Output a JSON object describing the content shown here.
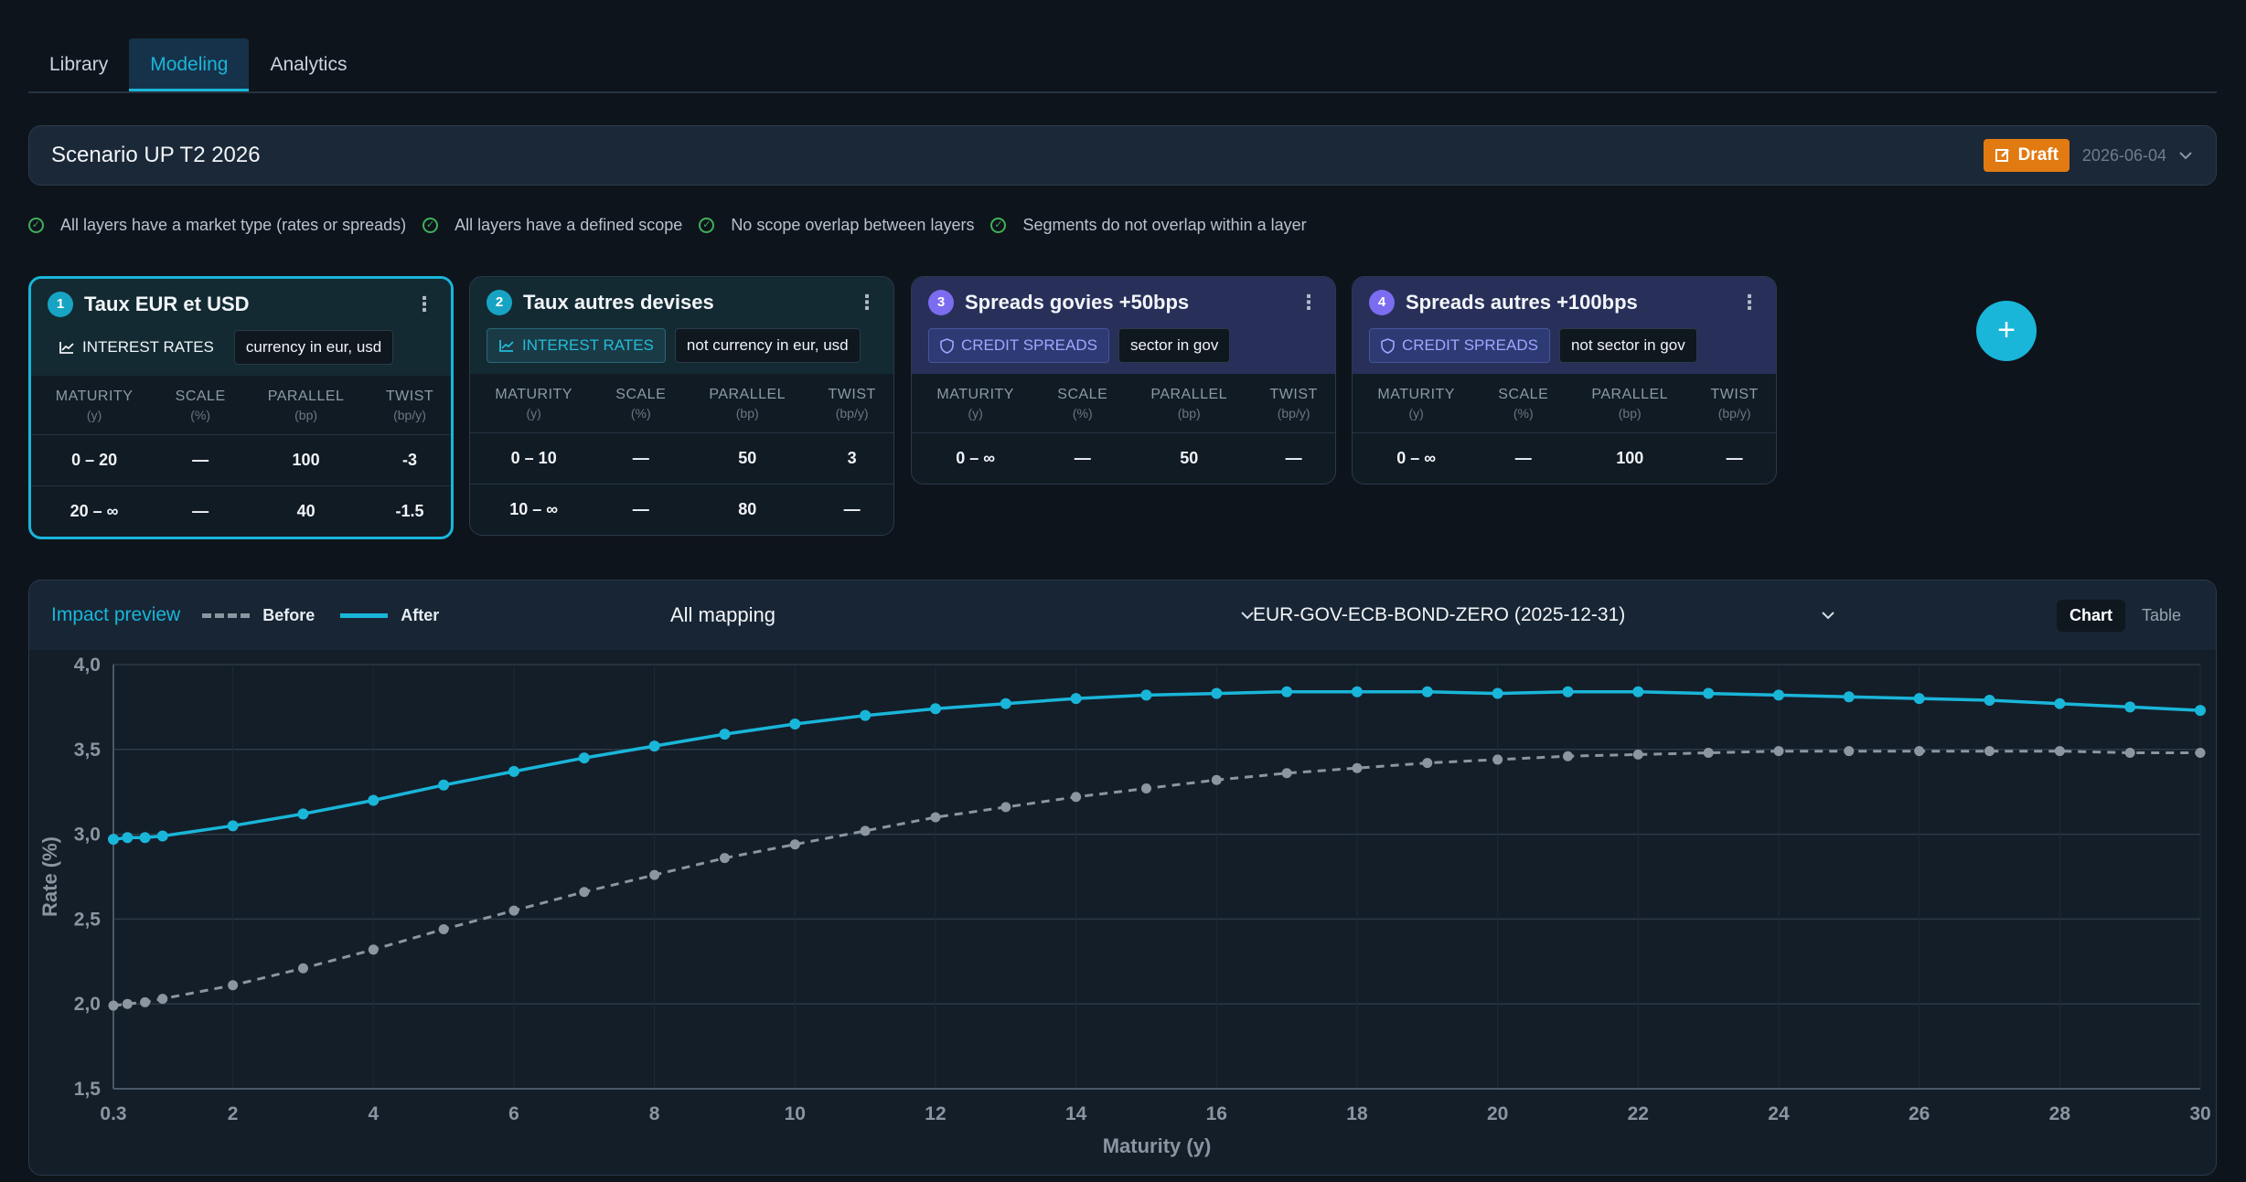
{
  "tabs": [
    {
      "label": "Library",
      "active": false
    },
    {
      "label": "Modeling",
      "active": true
    },
    {
      "label": "Analytics",
      "active": false
    }
  ],
  "scenario": {
    "title": "Scenario UP T2 2026",
    "status": "Draft",
    "date": "2026-06-04"
  },
  "checks": [
    "All layers have a market type (rates or spreads)",
    "All layers have a defined scope",
    "No scope overlap between layers",
    "Segments do not overlap within a layer"
  ],
  "table_headers": {
    "maturity": "MATURITY",
    "maturity_unit": "(y)",
    "scale": "SCALE",
    "scale_unit": "(%)",
    "parallel": "PARALLEL",
    "parallel_unit": "(bp)",
    "twist": "TWIST",
    "twist_unit": "(bp/y)"
  },
  "layers": [
    {
      "number": "1",
      "title": "Taux EUR et USD",
      "type": "INTEREST RATES",
      "scope": "currency in eur, usd",
      "segments": [
        {
          "maturity": "0 – 20",
          "scale": "—",
          "parallel": "100",
          "twist": "-3"
        },
        {
          "maturity": "20 – ∞",
          "scale": "—",
          "parallel": "40",
          "twist": "-1.5"
        }
      ]
    },
    {
      "number": "2",
      "title": "Taux autres devises",
      "type": "INTEREST RATES",
      "scope": "not currency in eur, usd",
      "segments": [
        {
          "maturity": "0 – 10",
          "scale": "—",
          "parallel": "50",
          "twist": "3"
        },
        {
          "maturity": "10 – ∞",
          "scale": "—",
          "parallel": "80",
          "twist": "—"
        }
      ]
    },
    {
      "number": "3",
      "title": "Spreads govies +50bps",
      "type": "CREDIT SPREADS",
      "scope": "sector in gov",
      "segments": [
        {
          "maturity": "0 – ∞",
          "scale": "—",
          "parallel": "50",
          "twist": "—"
        }
      ]
    },
    {
      "number": "4",
      "title": "Spreads autres +100bps",
      "type": "CREDIT SPREADS",
      "scope": "not sector in gov",
      "segments": [
        {
          "maturity": "0 – ∞",
          "scale": "—",
          "parallel": "100",
          "twist": "—"
        }
      ]
    }
  ],
  "add_layer_label": "+",
  "impact": {
    "title": "Impact preview",
    "legend_before": "Before",
    "legend_after": "After",
    "mapping_select": "All mapping",
    "curve_select": "EUR-GOV-ECB-BOND-ZERO (2025-12-31)",
    "view_chart": "Chart",
    "view_table": "Table"
  },
  "chart_data": {
    "type": "line",
    "xlabel": "Maturity (y)",
    "ylabel": "Rate (%)",
    "xlim": [
      0.3,
      30
    ],
    "ylim": [
      1.5,
      4.0
    ],
    "x_ticks": [
      "0.3",
      "2",
      "4",
      "6",
      "8",
      "10",
      "12",
      "14",
      "16",
      "18",
      "20",
      "22",
      "24",
      "26",
      "28",
      "30"
    ],
    "y_ticks": [
      "1,5",
      "2,0",
      "2,5",
      "3,0",
      "3,5",
      "4,0"
    ],
    "x": [
      0.3,
      0.5,
      0.75,
      1,
      2,
      3,
      4,
      5,
      6,
      7,
      8,
      9,
      10,
      11,
      12,
      13,
      14,
      15,
      16,
      17,
      18,
      19,
      20,
      21,
      22,
      23,
      24,
      25,
      26,
      27,
      28,
      29,
      30
    ],
    "series": [
      {
        "name": "Before",
        "color": "#8b96a1",
        "dashed": true,
        "values": [
          1.99,
          2.0,
          2.01,
          2.03,
          2.11,
          2.21,
          2.32,
          2.44,
          2.55,
          2.66,
          2.76,
          2.86,
          2.94,
          3.02,
          3.1,
          3.16,
          3.22,
          3.27,
          3.32,
          3.36,
          3.39,
          3.42,
          3.44,
          3.46,
          3.47,
          3.48,
          3.49,
          3.49,
          3.49,
          3.49,
          3.49,
          3.48,
          3.48
        ]
      },
      {
        "name": "After",
        "color": "#19b6d9",
        "dashed": false,
        "values": [
          2.97,
          2.98,
          2.98,
          2.99,
          3.05,
          3.12,
          3.2,
          3.29,
          3.37,
          3.45,
          3.52,
          3.59,
          3.65,
          3.7,
          3.74,
          3.77,
          3.8,
          3.82,
          3.83,
          3.84,
          3.84,
          3.84,
          3.83,
          3.84,
          3.84,
          3.83,
          3.82,
          3.81,
          3.8,
          3.79,
          3.77,
          3.75,
          3.73
        ]
      }
    ]
  }
}
